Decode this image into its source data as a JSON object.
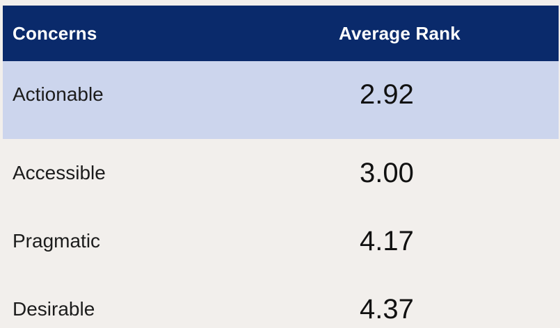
{
  "table": {
    "columns": [
      {
        "label": "Concerns"
      },
      {
        "label": "Average Rank"
      }
    ],
    "rows": [
      {
        "concern": "Actionable",
        "average_rank": "2.92",
        "highlighted": true
      },
      {
        "concern": "Accessible",
        "average_rank": "3.00",
        "highlighted": false
      },
      {
        "concern": "Pragmatic",
        "average_rank": "4.17",
        "highlighted": false
      },
      {
        "concern": "Desirable",
        "average_rank": "4.37",
        "highlighted": false
      }
    ]
  },
  "chart_data": {
    "type": "table",
    "title": "",
    "columns": [
      "Concerns",
      "Average Rank"
    ],
    "categories": [
      "Actionable",
      "Accessible",
      "Pragmatic",
      "Desirable"
    ],
    "values": [
      2.92,
      3.0,
      4.17,
      4.37
    ],
    "highlighted_row": "Actionable"
  },
  "colors": {
    "page_bg": "#f2efec",
    "header_bg": "#0a2a6b",
    "header_text": "#ffffff",
    "highlight_row_bg": "#ccd5ed",
    "body_text": "#1c1c1c",
    "number_text": "#111111"
  }
}
